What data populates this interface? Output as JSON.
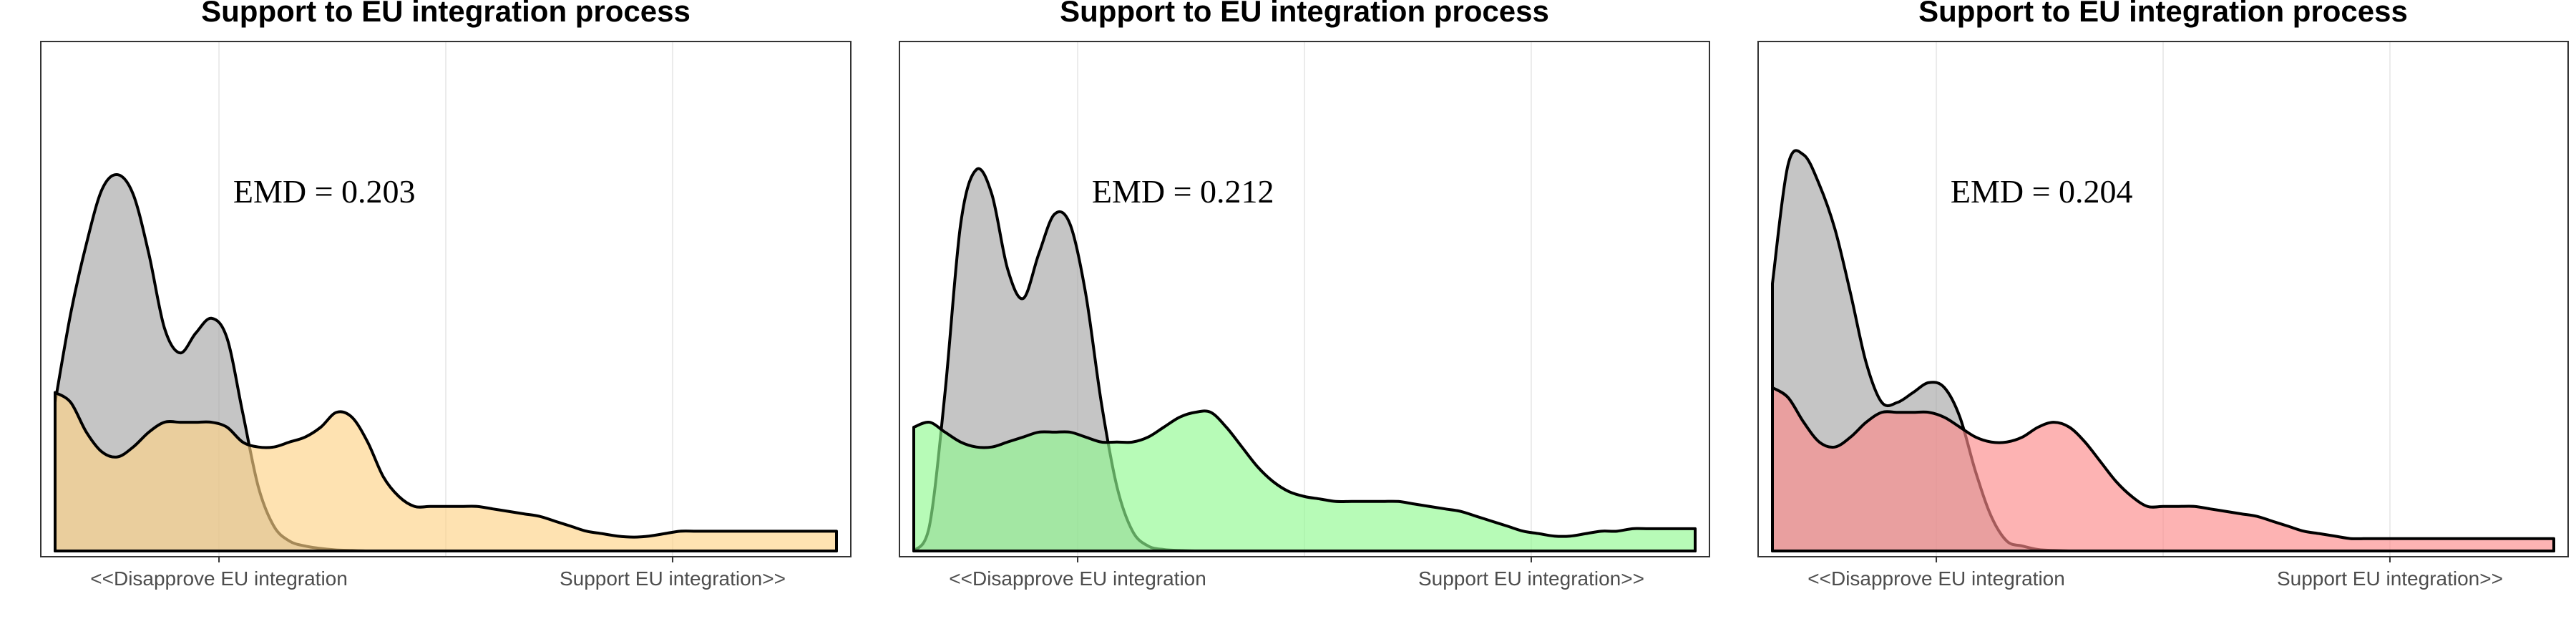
{
  "chart_data": [
    {
      "type": "area",
      "title": "Support to EU integration process",
      "tick_labels": [
        "<<Disapprove EU integration",
        "Support EU integration>>"
      ],
      "annotation": "EMD = 0.203",
      "xlim": [
        0,
        1
      ],
      "ylim": [
        0,
        1
      ],
      "grid": true,
      "x": [
        0.0,
        0.02,
        0.04,
        0.06,
        0.08,
        0.1,
        0.12,
        0.14,
        0.16,
        0.18,
        0.2,
        0.22,
        0.24,
        0.26,
        0.28,
        0.3,
        0.32,
        0.34,
        0.36,
        0.38,
        0.4,
        0.42,
        0.44,
        0.46,
        0.48,
        0.5,
        0.52,
        0.54,
        0.56,
        0.58,
        0.6,
        0.62,
        0.64,
        0.66,
        0.68,
        0.7,
        0.72,
        0.74,
        0.76,
        0.78,
        0.8,
        0.82,
        0.84,
        0.86,
        0.88,
        0.9,
        0.92,
        0.94,
        0.96,
        0.98,
        1.0
      ],
      "series": [
        {
          "color": "#a6a6a6",
          "values": [
            0.3,
            0.48,
            0.62,
            0.73,
            0.76,
            0.72,
            0.6,
            0.45,
            0.4,
            0.44,
            0.47,
            0.43,
            0.28,
            0.13,
            0.05,
            0.02,
            0.01,
            0.005,
            0.002,
            0.001,
            0,
            0,
            0,
            0,
            0,
            0,
            0,
            0,
            0,
            0,
            0,
            0,
            0,
            0,
            0,
            0,
            0,
            0,
            0,
            0,
            0,
            0,
            0,
            0,
            0,
            0,
            0,
            0,
            0,
            0,
            0
          ]
        },
        {
          "color": "#fdd387",
          "values": [
            0.32,
            0.3,
            0.24,
            0.2,
            0.19,
            0.21,
            0.24,
            0.26,
            0.26,
            0.26,
            0.26,
            0.25,
            0.22,
            0.21,
            0.21,
            0.22,
            0.23,
            0.25,
            0.28,
            0.27,
            0.22,
            0.15,
            0.11,
            0.09,
            0.09,
            0.09,
            0.09,
            0.09,
            0.085,
            0.08,
            0.075,
            0.07,
            0.06,
            0.05,
            0.04,
            0.035,
            0.03,
            0.028,
            0.03,
            0.035,
            0.04,
            0.04,
            0.04,
            0.04,
            0.04,
            0.04,
            0.04,
            0.04,
            0.04,
            0.04,
            0.04
          ]
        }
      ]
    },
    {
      "type": "area",
      "title": "Support to EU integration process",
      "tick_labels": [
        "<<Disapprove EU integration",
        "Support EU integration>>"
      ],
      "annotation": "EMD = 0.212",
      "xlim": [
        0,
        1
      ],
      "ylim": [
        0,
        1
      ],
      "grid": true,
      "x": [
        0.0,
        0.02,
        0.04,
        0.06,
        0.08,
        0.1,
        0.12,
        0.14,
        0.16,
        0.18,
        0.2,
        0.22,
        0.24,
        0.26,
        0.28,
        0.3,
        0.32,
        0.34,
        0.36,
        0.38,
        0.4,
        0.42,
        0.44,
        0.46,
        0.48,
        0.5,
        0.52,
        0.54,
        0.56,
        0.58,
        0.6,
        0.62,
        0.64,
        0.66,
        0.68,
        0.7,
        0.72,
        0.74,
        0.76,
        0.78,
        0.8,
        0.82,
        0.84,
        0.86,
        0.88,
        0.9,
        0.92,
        0.94,
        0.96,
        0.98,
        1.0
      ],
      "series": [
        {
          "color": "#a6a6a6",
          "values": [
            0.0,
            0.05,
            0.32,
            0.66,
            0.77,
            0.72,
            0.57,
            0.51,
            0.6,
            0.68,
            0.66,
            0.52,
            0.3,
            0.13,
            0.04,
            0.01,
            0.003,
            0.001,
            0,
            0,
            0,
            0,
            0,
            0,
            0,
            0,
            0,
            0,
            0,
            0,
            0,
            0,
            0,
            0,
            0,
            0,
            0,
            0,
            0,
            0,
            0,
            0,
            0,
            0,
            0,
            0,
            0,
            0,
            0,
            0,
            0
          ]
        },
        {
          "color": "#90f990",
          "values": [
            0.25,
            0.26,
            0.24,
            0.22,
            0.21,
            0.21,
            0.22,
            0.23,
            0.24,
            0.24,
            0.24,
            0.23,
            0.22,
            0.22,
            0.22,
            0.23,
            0.25,
            0.27,
            0.28,
            0.28,
            0.25,
            0.21,
            0.17,
            0.14,
            0.12,
            0.11,
            0.105,
            0.1,
            0.1,
            0.1,
            0.1,
            0.1,
            0.095,
            0.09,
            0.085,
            0.08,
            0.07,
            0.06,
            0.05,
            0.04,
            0.035,
            0.03,
            0.03,
            0.035,
            0.04,
            0.04,
            0.045,
            0.045,
            0.045,
            0.045,
            0.045
          ]
        }
      ]
    },
    {
      "type": "area",
      "title": "Support to EU integration process",
      "tick_labels": [
        "<<Disapprove EU integration",
        "Support EU integration>>"
      ],
      "annotation": "EMD = 0.204",
      "xlim": [
        0,
        1
      ],
      "ylim": [
        0,
        1
      ],
      "grid": true,
      "x": [
        0.0,
        0.02,
        0.04,
        0.06,
        0.08,
        0.1,
        0.12,
        0.14,
        0.16,
        0.18,
        0.2,
        0.22,
        0.24,
        0.26,
        0.28,
        0.3,
        0.32,
        0.34,
        0.36,
        0.38,
        0.4,
        0.42,
        0.44,
        0.46,
        0.48,
        0.5,
        0.52,
        0.54,
        0.56,
        0.58,
        0.6,
        0.62,
        0.64,
        0.66,
        0.68,
        0.7,
        0.72,
        0.74,
        0.76,
        0.78,
        0.8,
        0.82,
        0.84,
        0.86,
        0.88,
        0.9,
        0.92,
        0.94,
        0.96,
        0.98,
        1.0
      ],
      "series": [
        {
          "color": "#a6a6a6",
          "values": [
            0.54,
            0.78,
            0.8,
            0.74,
            0.65,
            0.52,
            0.38,
            0.3,
            0.3,
            0.32,
            0.34,
            0.33,
            0.27,
            0.16,
            0.07,
            0.02,
            0.01,
            0.003,
            0.001,
            0,
            0,
            0,
            0,
            0,
            0,
            0,
            0,
            0,
            0,
            0,
            0,
            0,
            0,
            0,
            0,
            0,
            0,
            0,
            0,
            0,
            0,
            0,
            0,
            0,
            0,
            0,
            0,
            0,
            0,
            0,
            0
          ]
        },
        {
          "color": "#fc8b8b",
          "values": [
            0.33,
            0.31,
            0.26,
            0.22,
            0.21,
            0.23,
            0.26,
            0.28,
            0.28,
            0.28,
            0.28,
            0.27,
            0.25,
            0.23,
            0.22,
            0.22,
            0.23,
            0.25,
            0.26,
            0.25,
            0.22,
            0.18,
            0.14,
            0.11,
            0.09,
            0.09,
            0.09,
            0.09,
            0.085,
            0.08,
            0.075,
            0.07,
            0.06,
            0.05,
            0.04,
            0.035,
            0.03,
            0.025,
            0.025,
            0.025,
            0.025,
            0.025,
            0.025,
            0.025,
            0.025,
            0.025,
            0.025,
            0.025,
            0.025,
            0.025,
            0.025
          ]
        }
      ]
    }
  ]
}
